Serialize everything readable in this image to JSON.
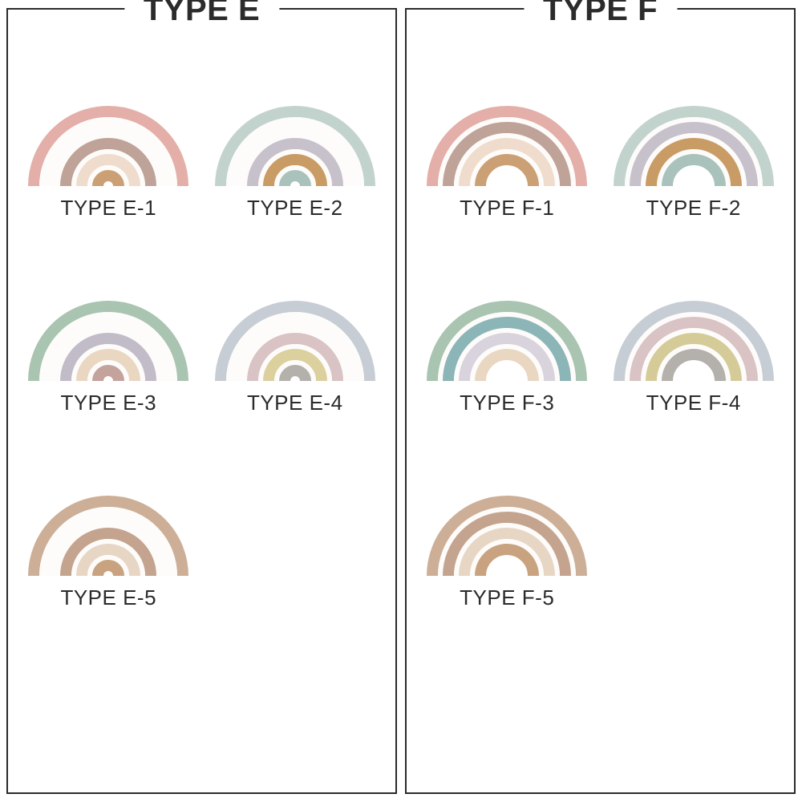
{
  "background_color": "#ffffff",
  "border_color": "#2b2b2b",
  "text_color": "#2b2b2b",
  "title_fontsize": 40,
  "label_fontsize": 26,
  "panels": [
    {
      "title": "TYPE E",
      "items": [
        {
          "label": "TYPE E-1",
          "arcs": [
            "#e3afa8",
            "#fdfcfa",
            "#bfa398",
            "#f0dccd",
            "#cba075"
          ],
          "gap_color": "#fdfcfa"
        },
        {
          "label": "TYPE E-2",
          "arcs": [
            "#c2d3ce",
            "#fdfcfa",
            "#c7c1cb",
            "#c99b65",
            "#a9c2bb"
          ],
          "gap_color": "#fdfcfa"
        },
        {
          "label": "TYPE E-3",
          "arcs": [
            "#a9c4b0",
            "#fdfcfa",
            "#c1bcc8",
            "#ead7c2",
            "#c4a39c"
          ],
          "gap_color": "#fdfcfa"
        },
        {
          "label": "TYPE E-4",
          "arcs": [
            "#c7cdd4",
            "#fdfcfa",
            "#d9c3c4",
            "#dcd09f",
            "#b4b0ab"
          ],
          "gap_color": "#fdfcfa"
        },
        {
          "label": "TYPE E-5",
          "arcs": [
            "#cdaf97",
            "#fdfcfa",
            "#c4a48e",
            "#e8d6c5",
            "#c9a27f"
          ],
          "gap_color": "#fdfcfa"
        }
      ]
    },
    {
      "title": "TYPE F",
      "items": [
        {
          "label": "TYPE F-1",
          "arcs": [
            "#e3afa8",
            "#bfa398",
            "#f0dccd",
            "#cba075"
          ],
          "gap_color": "#fdfcfa"
        },
        {
          "label": "TYPE F-2",
          "arcs": [
            "#c2d3ce",
            "#c7c1cb",
            "#c99b65",
            "#a9c2bb"
          ],
          "gap_color": "#fdfcfa"
        },
        {
          "label": "TYPE F-3",
          "arcs": [
            "#a9c4b0",
            "#8bb5b7",
            "#d8d3dc",
            "#ead7c2"
          ],
          "gap_color": "#fdfcfa"
        },
        {
          "label": "TYPE F-4",
          "arcs": [
            "#c7cdd4",
            "#d9c3c4",
            "#d5cb99",
            "#b4b0ab"
          ],
          "gap_color": "#fdfcfa"
        },
        {
          "label": "TYPE F-5",
          "arcs": [
            "#cdaf97",
            "#c4a48e",
            "#e8d6c5",
            "#c9a27f"
          ],
          "gap_color": "#fdfcfa"
        }
      ]
    }
  ],
  "rainbow_geometry": {
    "view_w": 210,
    "view_h": 170,
    "outer_radius": 100,
    "band_width": 14,
    "gap_width": 6
  }
}
